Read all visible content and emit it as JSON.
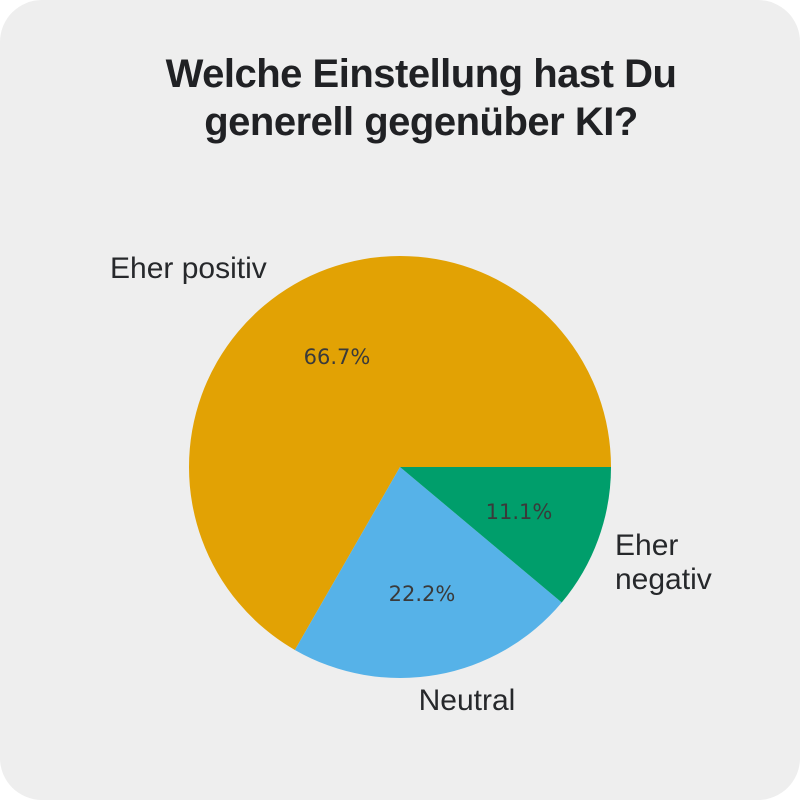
{
  "title_line1": "Welche Einstellung hast Du",
  "title_line2": "generell gegenüber KI?",
  "chart_data": {
    "type": "pie",
    "title": "Welche Einstellung hast Du generell gegenüber KI?",
    "start_angle_deg": 0,
    "direction": "counterclockwise",
    "legend_position": "outside-labels",
    "slices": [
      {
        "label": "Eher positiv",
        "value": 66.7,
        "pct_label": "66.7%",
        "color": "#e2a204"
      },
      {
        "label": "Neutral",
        "value": 22.2,
        "pct_label": "22.2%",
        "color": "#56b2e8"
      },
      {
        "label": "Eher negativ",
        "value": 11.1,
        "pct_label": "11.1%",
        "color": "#009e6b"
      }
    ]
  },
  "colors": {
    "page_bg": "#ffffff",
    "card_bg": "#eeeeee",
    "title_text": "#202124",
    "category_label_text": "#26282b",
    "percent_label_text": "#3a3a3a"
  }
}
